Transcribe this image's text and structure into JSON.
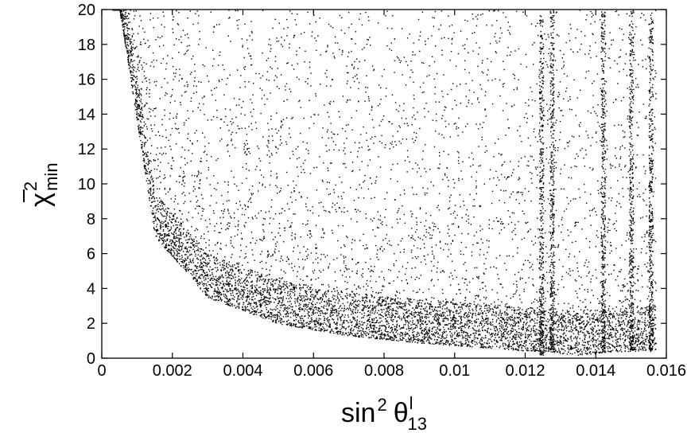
{
  "chart_data": {
    "type": "scatter",
    "title": "",
    "xlabel": {
      "base": "sin",
      "power": "2",
      "symbol": "θ",
      "sup": "l",
      "sub": "13"
    },
    "ylabel": {
      "symbol": "χ",
      "power": "2",
      "sub": "min"
    },
    "xlim": [
      0,
      0.016
    ],
    "ylim": [
      0,
      20
    ],
    "xticks": [
      0,
      0.002,
      0.004,
      0.006,
      0.008,
      0.01,
      0.012,
      0.014,
      0.016
    ],
    "xtick_labels": [
      "0",
      "0.002",
      "0.004",
      "0.006",
      "0.008",
      "0.01",
      "0.012",
      "0.014",
      "0.016"
    ],
    "yticks": [
      0,
      2,
      4,
      6,
      8,
      10,
      12,
      14,
      16,
      18,
      20
    ],
    "ytick_labels": [
      "0",
      "2",
      "4",
      "6",
      "8",
      "10",
      "12",
      "14",
      "16",
      "18",
      "20"
    ],
    "grid": false,
    "legend": "none",
    "marker_color": "#000000",
    "series": [
      {
        "density_description": "dense scatter of dots; lower envelope falls from ~20 at x≈0.0005 to ~0.3 near x≈0.0135, with vertical dotted columns at x≈0.0125 and x≈0.0155",
        "envelope_x": [
          0.0005,
          0.0015,
          0.003,
          0.005,
          0.007,
          0.009,
          0.011,
          0.012,
          0.0127,
          0.013,
          0.0135,
          0.014,
          0.0145,
          0.015,
          0.0155
        ],
        "envelope_ymin": [
          20,
          7,
          3.5,
          2.0,
          1.3,
          0.9,
          0.6,
          0.45,
          0.4,
          0.3,
          0.2,
          0.3,
          0.4,
          0.4,
          0.5
        ]
      }
    ]
  }
}
